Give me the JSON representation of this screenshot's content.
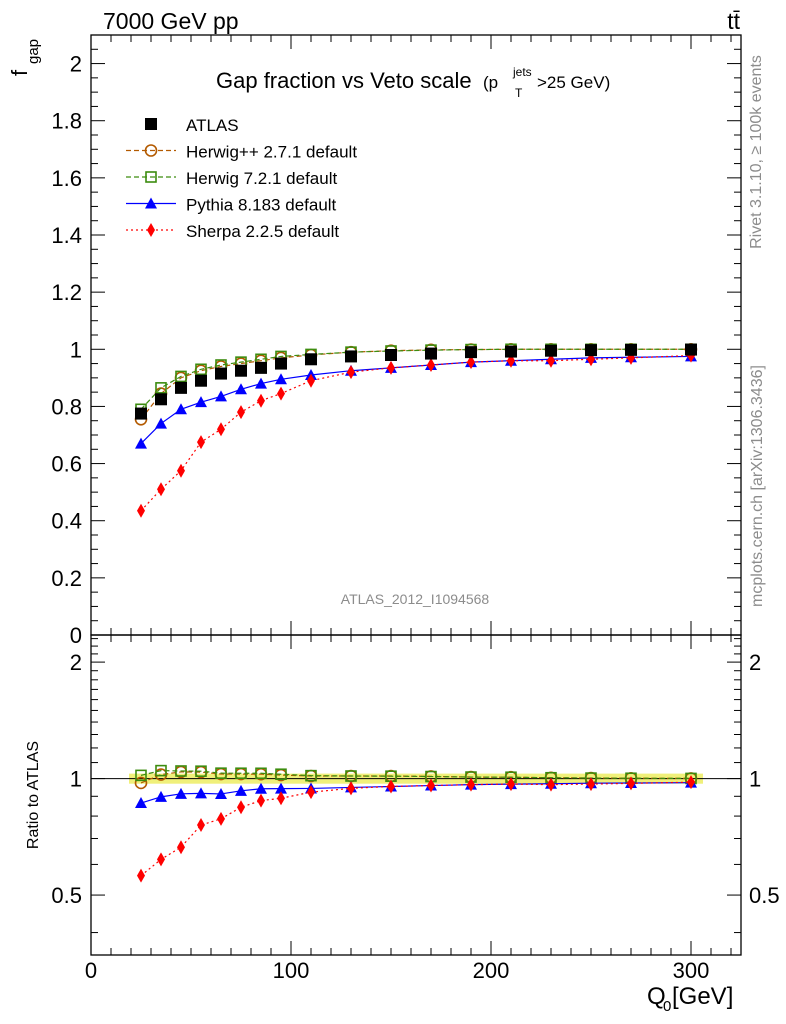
{
  "header": {
    "energy": "7000 GeV pp",
    "process": "tt̄",
    "rivet": "Rivet 3.1.10, ≥ 100k events",
    "mcplots": "mcplots.cern.ch [arXiv:1306.3436]",
    "analysis": "ATLAS_2012_I1094568"
  },
  "chart_data": {
    "type": "line",
    "title": "Gap fraction vs Veto scale",
    "title_suffix_pre": "(p",
    "title_sub": "T",
    "title_sup": "jets",
    "title_suffix_post": ">25 GeV)",
    "ylabel_main": "f",
    "ylabel_main_sub": "gap",
    "ylabel_ratio": "Ratio to ATLAS",
    "xlabel_main": "Q",
    "xlabel_sub": "0",
    "xlabel_unit": " [GeV]",
    "xlim": [
      0,
      325
    ],
    "ylim": [
      0,
      2.1
    ],
    "ratio_ylim": [
      0.35,
      2.35
    ],
    "x_ticks": [
      0,
      100,
      200,
      300
    ],
    "x_tick_labels": [
      "0",
      "100",
      "200",
      "300"
    ],
    "y_ticks": [
      0,
      0.2,
      0.4,
      0.6,
      0.8,
      1,
      1.2,
      1.4,
      1.6,
      1.8,
      2
    ],
    "y_tick_labels": [
      "0",
      "0.2",
      "0.4",
      "0.6",
      "0.8",
      "1",
      "1.2",
      "1.4",
      "1.6",
      "1.8",
      "2"
    ],
    "ratio_ticks": [
      0.5,
      1,
      2
    ],
    "ratio_tick_labels": [
      "0.5",
      "1",
      "2"
    ],
    "x": [
      25,
      35,
      45,
      55,
      65,
      75,
      85,
      95,
      110,
      130,
      150,
      170,
      190,
      210,
      230,
      250,
      270,
      300
    ],
    "series": [
      {
        "name": "ATLAS",
        "color": "#000000",
        "marker": "square-filled",
        "line": "none",
        "values": [
          0.775,
          0.825,
          0.865,
          0.89,
          0.915,
          0.925,
          0.935,
          0.95,
          0.965,
          0.975,
          0.98,
          0.985,
          0.99,
          0.992,
          0.995,
          0.997,
          0.998,
          0.999
        ]
      },
      {
        "name": "Herwig++ 2.7.1 default",
        "color": "#b35a00",
        "marker": "circle-open",
        "line": "dashed",
        "values": [
          0.755,
          0.845,
          0.9,
          0.925,
          0.94,
          0.95,
          0.96,
          0.97,
          0.98,
          0.99,
          0.995,
          0.998,
          0.999,
          1.0,
          1.0,
          1.0,
          1.0,
          1.0
        ]
      },
      {
        "name": "Herwig 7.2.1 default",
        "color": "#3c8c0f",
        "marker": "square-open",
        "line": "dashed",
        "values": [
          0.79,
          0.865,
          0.905,
          0.93,
          0.945,
          0.955,
          0.965,
          0.975,
          0.982,
          0.99,
          0.994,
          0.997,
          0.999,
          1.0,
          1.0,
          1.0,
          1.0,
          1.0
        ]
      },
      {
        "name": "Pythia 8.183 default",
        "color": "#0000ff",
        "marker": "triangle-filled",
        "line": "solid",
        "values": [
          0.67,
          0.74,
          0.79,
          0.815,
          0.835,
          0.86,
          0.88,
          0.895,
          0.91,
          0.925,
          0.935,
          0.945,
          0.955,
          0.96,
          0.965,
          0.97,
          0.972,
          0.975
        ]
      },
      {
        "name": "Sherpa 2.2.5 default",
        "color": "#ff0000",
        "marker": "diamond-filled",
        "line": "dotted",
        "values": [
          0.435,
          0.51,
          0.575,
          0.675,
          0.72,
          0.78,
          0.82,
          0.845,
          0.89,
          0.92,
          0.935,
          0.945,
          0.955,
          0.96,
          0.96,
          0.965,
          0.97,
          0.978
        ]
      }
    ],
    "legend_position": "top-left"
  }
}
